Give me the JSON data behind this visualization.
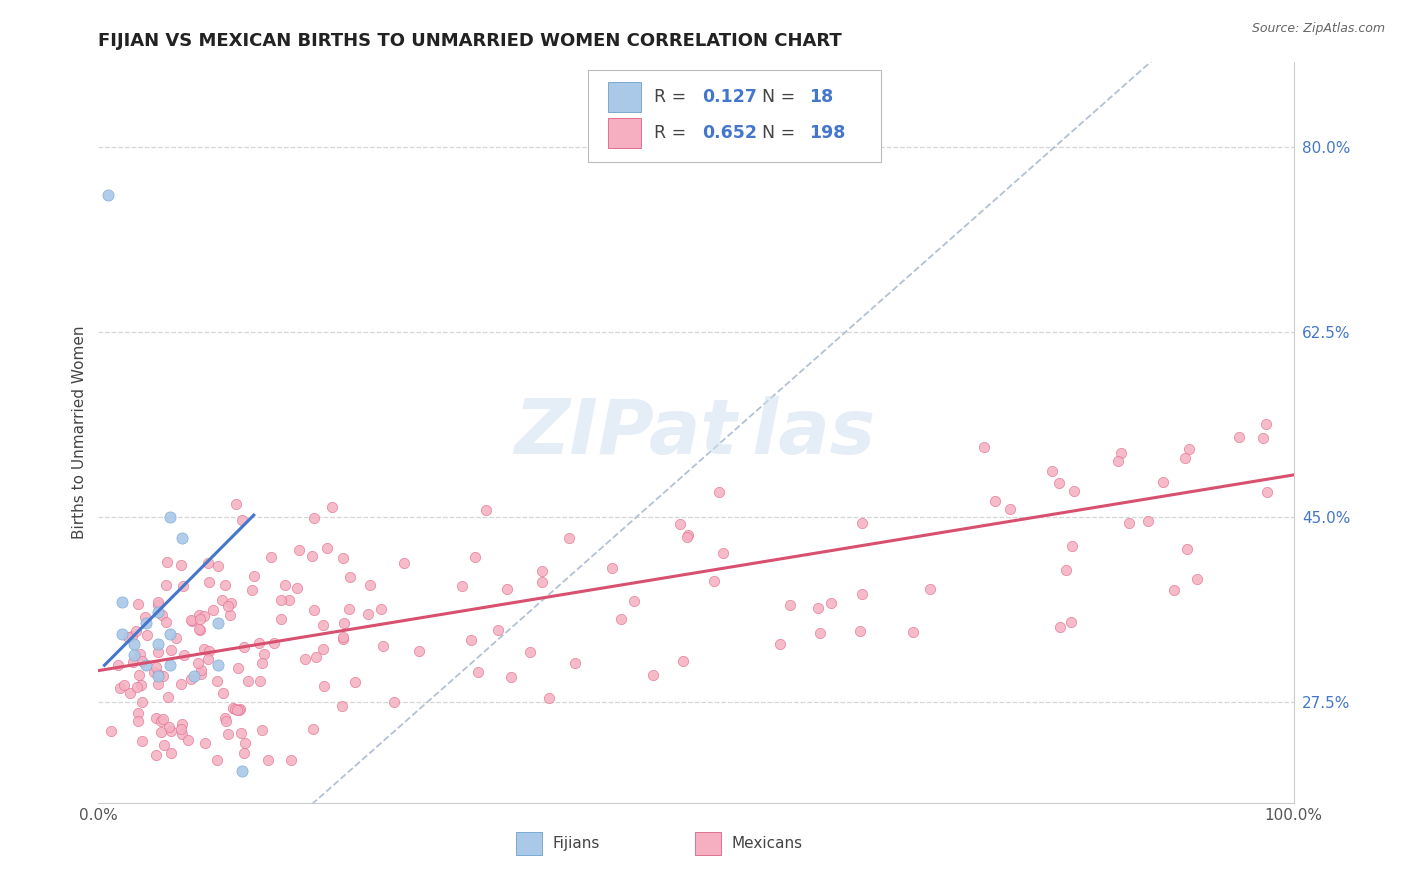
{
  "title": "FIJIAN VS MEXICAN BIRTHS TO UNMARRIED WOMEN CORRELATION CHART",
  "source": "Source: ZipAtlas.com",
  "ylabel": "Births to Unmarried Women",
  "xlim": [
    0.0,
    1.0
  ],
  "ylim": [
    0.18,
    0.88
  ],
  "ytick_labels": [
    "27.5%",
    "45.0%",
    "62.5%",
    "80.0%"
  ],
  "ytick_positions": [
    0.275,
    0.45,
    0.625,
    0.8
  ],
  "fijian_color": "#aac8e8",
  "fijian_edge_color": "#7aaad0",
  "mexican_color": "#f5afc0",
  "mexican_edge_color": "#e07090",
  "fijian_line_color": "#4477cc",
  "mexican_line_color": "#d85070",
  "diagonal_color": "#aabbd0",
  "R_fijian": 0.127,
  "N_fijian": 18,
  "R_mexican": 0.652,
  "N_mexican": 198,
  "background_color": "#ffffff",
  "grid_color": "#cccccc",
  "title_fontsize": 13,
  "axis_fontsize": 11,
  "tick_fontsize": 11,
  "blue_text_color": "#4477cc",
  "dark_text_color": "#444444"
}
